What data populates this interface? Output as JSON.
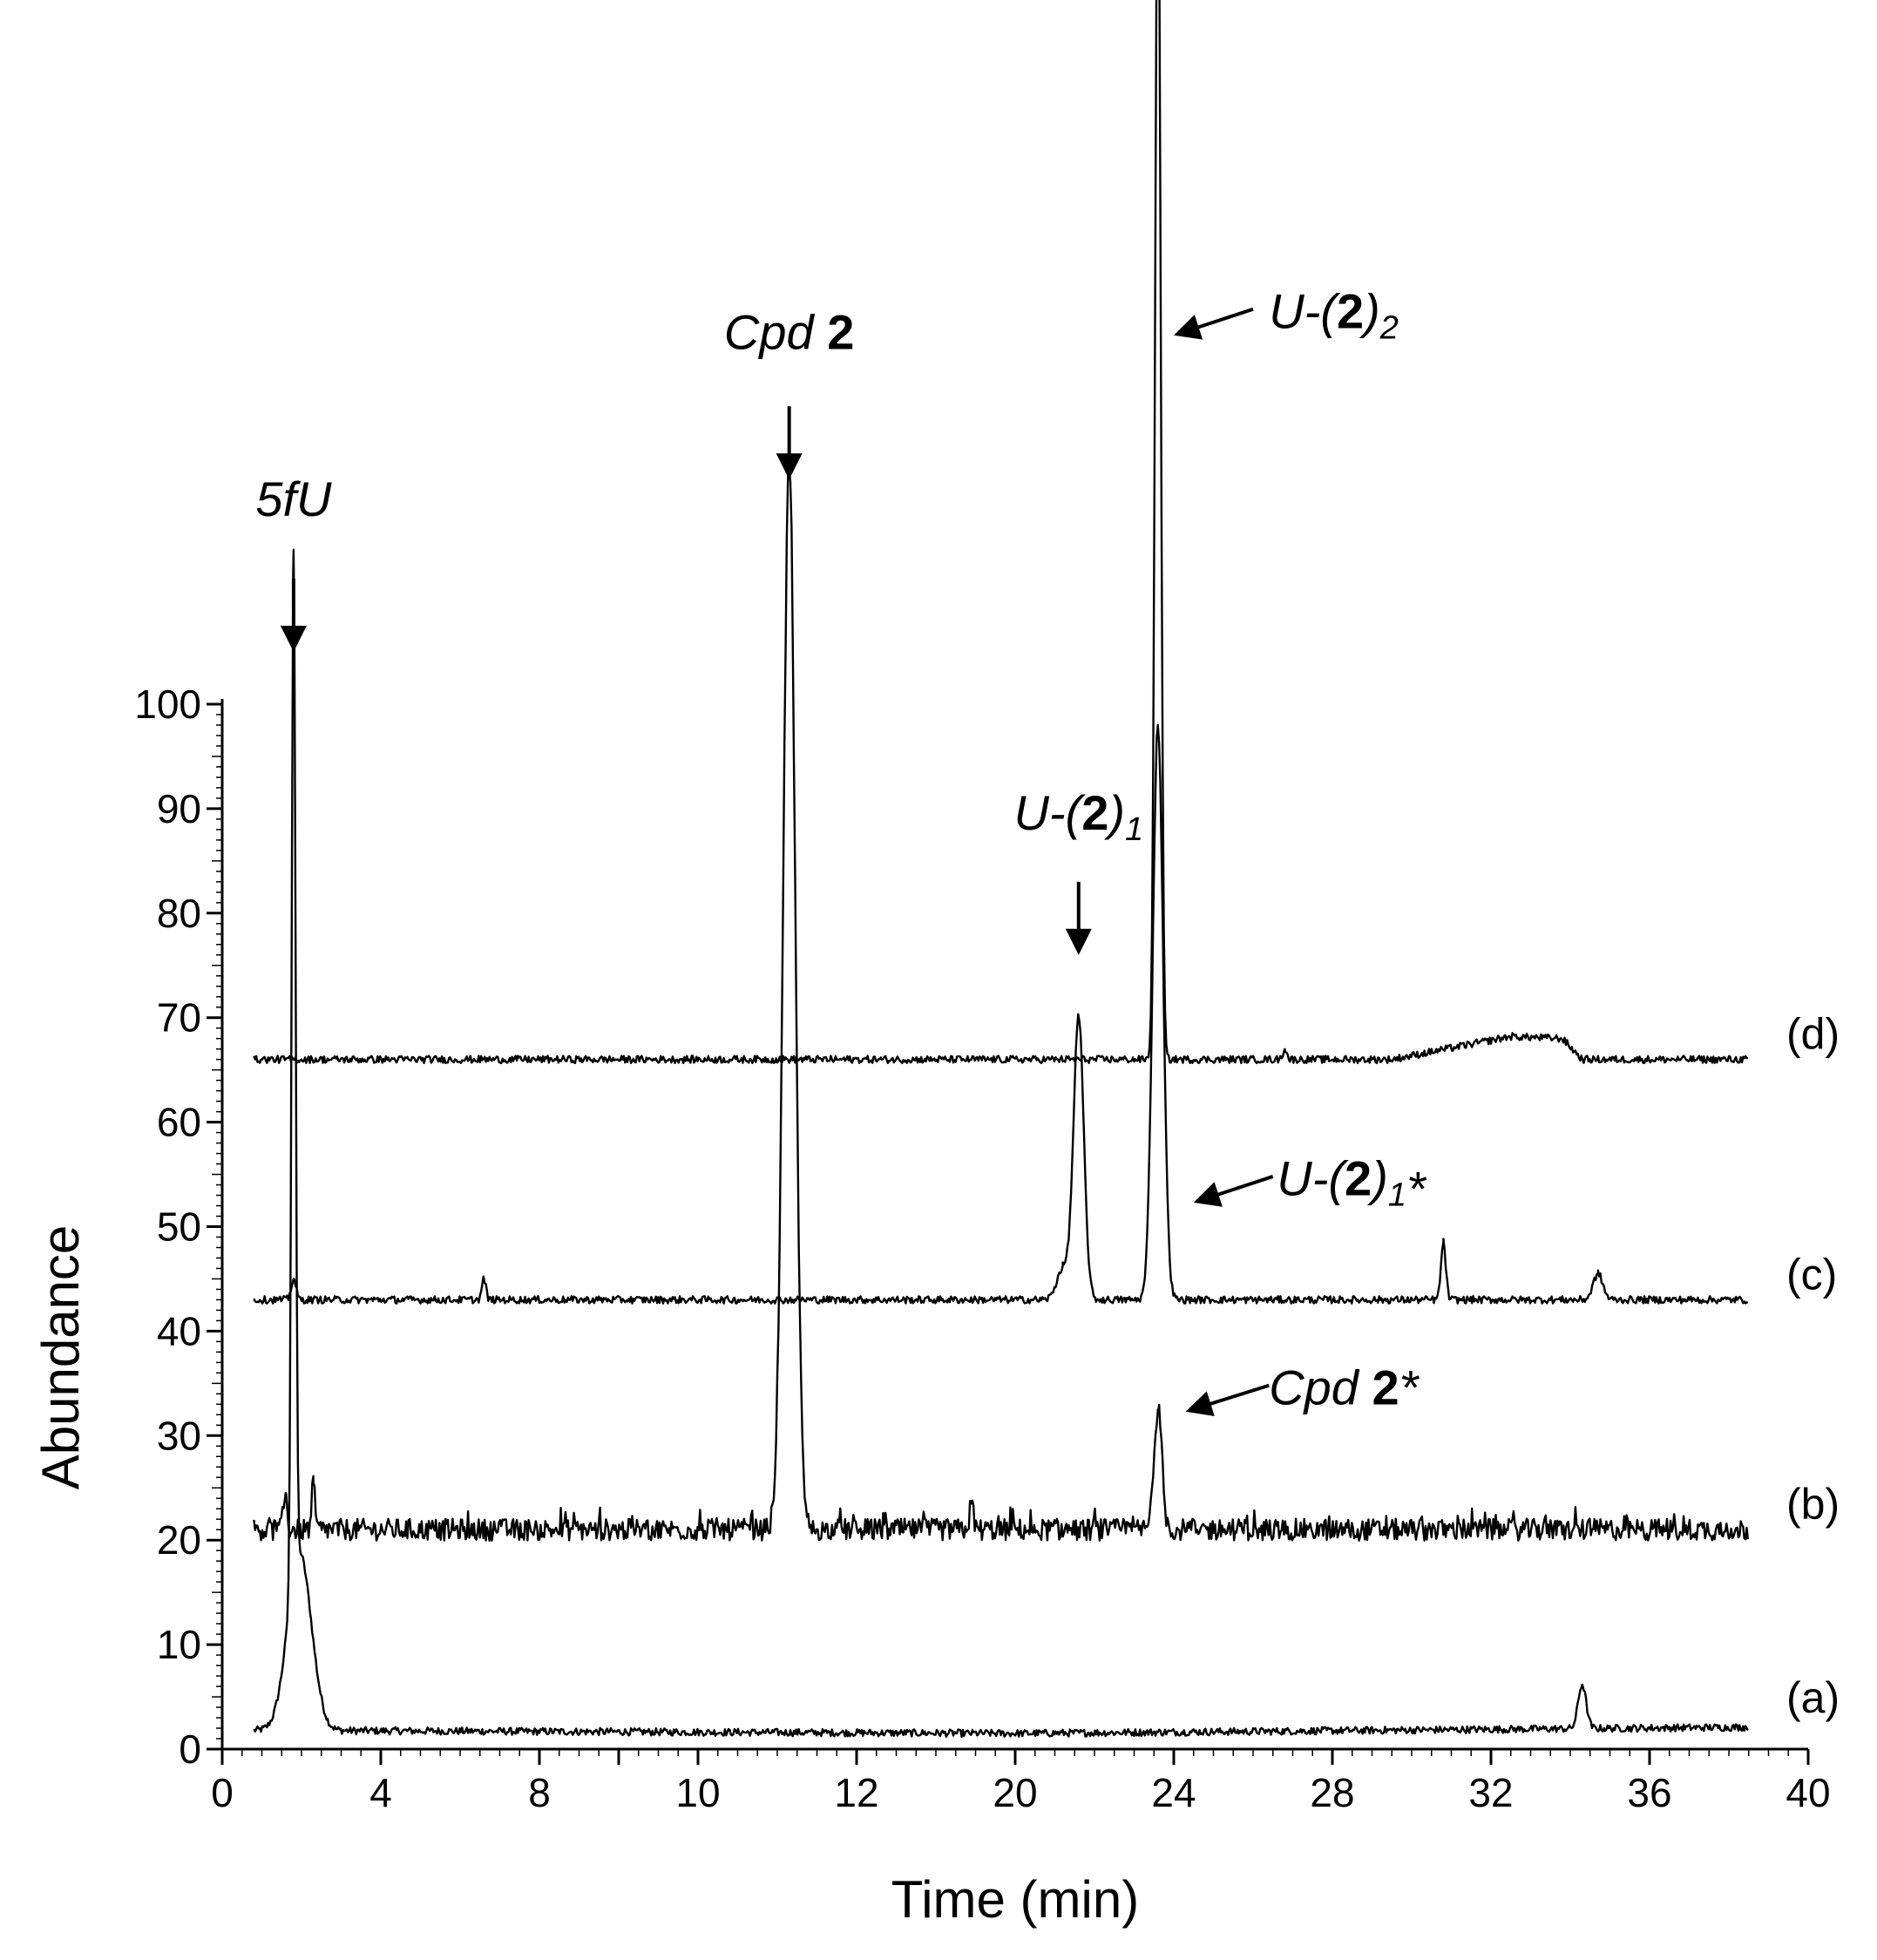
{
  "chart_data": {
    "type": "line",
    "title": "",
    "xlabel": "Time (min)",
    "ylabel": "Abundance",
    "xlim": [
      0,
      40
    ],
    "ylim": [
      0,
      100
    ],
    "x_ticks": [
      "0",
      "4",
      "8",
      "10",
      "12",
      "20",
      "24",
      "28",
      "32",
      "36",
      "40"
    ],
    "y_ticks": [
      "0",
      "10",
      "20",
      "30",
      "40",
      "50",
      "60",
      "70",
      "80",
      "90",
      "100"
    ],
    "grid": false,
    "legend": "none",
    "baseline_noise": 0.35,
    "series": [
      {
        "name": "(a)",
        "x_range": [
          0.8,
          38.5
        ],
        "baseline": [
          [
            0.8,
            1.8
          ],
          [
            20,
            1.5
          ],
          [
            38.5,
            2.1
          ]
        ],
        "peaks": [
          {
            "x": 1.8,
            "height": 98,
            "width": 0.05
          },
          {
            "x": 1.95,
            "height": 17,
            "width": 0.3
          },
          {
            "x": 34.3,
            "height": 4.2,
            "width": 0.1
          }
        ],
        "label": "(a)",
        "label_y": 5
      },
      {
        "name": "(b)",
        "x_range": [
          0.8,
          38.5
        ],
        "baseline": [
          [
            0.8,
            21
          ],
          [
            38.5,
            21
          ]
        ],
        "noise_scale": 3,
        "peaks": [
          {
            "x": 1.6,
            "height": 3.5,
            "width": 0.04
          },
          {
            "x": 2.3,
            "height": 4.5,
            "width": 0.04
          },
          {
            "x": 14.3,
            "height": 102,
            "width": 0.15
          },
          {
            "x": 18.9,
            "height": 2.5,
            "width": 0.05
          },
          {
            "x": 23.6,
            "height": 11.5,
            "width": 0.1
          }
        ],
        "label": "(b)",
        "label_y": 23.5
      },
      {
        "name": "(c)",
        "x_range": [
          0.8,
          38.5
        ],
        "baseline": [
          [
            0.8,
            43
          ],
          [
            38.5,
            43
          ]
        ],
        "peaks": [
          {
            "x": 1.8,
            "height": 2,
            "width": 0.06
          },
          {
            "x": 6.6,
            "height": 2,
            "width": 0.05
          },
          {
            "x": 21.6,
            "height": 27,
            "width": 0.13
          },
          {
            "x": 21.2,
            "height": 3,
            "width": 0.15
          },
          {
            "x": 23.6,
            "height": 55,
            "width": 0.13
          },
          {
            "x": 30.8,
            "height": 5.5,
            "width": 0.06
          },
          {
            "x": 34.7,
            "height": 2.5,
            "width": 0.12
          }
        ],
        "label": "(c)",
        "label_y": 45.5
      },
      {
        "name": "(d)",
        "x_range": [
          0.8,
          38.5
        ],
        "baseline": [
          [
            0.8,
            66
          ],
          [
            29.5,
            66
          ],
          [
            32.5,
            68.2
          ],
          [
            33.8,
            68
          ],
          [
            34.3,
            66
          ],
          [
            38.5,
            66
          ]
        ],
        "peaks": [
          {
            "x": 23.6,
            "height": 120,
            "width": 0.07
          },
          {
            "x": 26.8,
            "height": 1,
            "width": 0.05
          }
        ],
        "label": "(d)",
        "label_y": 68.5
      }
    ],
    "annotations": [
      {
        "id": "5fu",
        "parts": [
          {
            "t": "5fU"
          }
        ],
        "arrow": "down",
        "x": 1.8,
        "text_y": 118,
        "arrow_from": 112,
        "arrow_to": 105
      },
      {
        "id": "cpd2",
        "parts": [
          {
            "t": "Cpd "
          },
          {
            "t": "2",
            "b": true
          }
        ],
        "arrow": "down",
        "x": 14.3,
        "text_y": 134,
        "arrow_from": 128.5,
        "arrow_to": 121.5
      },
      {
        "id": "u21",
        "parts": [
          {
            "t": "U-("
          },
          {
            "t": "2",
            "b": true
          },
          {
            "t": ")"
          },
          {
            "t": "1",
            "sub": true
          }
        ],
        "arrow": "down",
        "x": 21.6,
        "text_y": 88,
        "arrow_from": 83,
        "arrow_to": 76
      },
      {
        "id": "u22",
        "parts": [
          {
            "t": "U-("
          },
          {
            "t": "2",
            "b": true
          },
          {
            "t": ")"
          },
          {
            "t": "2",
            "sub": true
          }
        ],
        "arrow": "left",
        "text_x": 26.4,
        "text_y": 136,
        "arrow_from_x": 26.0,
        "arrow_from_y": 137.8,
        "arrow_to_x": 24.0,
        "arrow_to_y": 135.3
      },
      {
        "id": "u21star",
        "parts": [
          {
            "t": "U-("
          },
          {
            "t": "2",
            "b": true
          },
          {
            "t": ")"
          },
          {
            "t": "1",
            "sub": true
          },
          {
            "t": "*"
          }
        ],
        "arrow": "left",
        "text_x": 26.6,
        "text_y": 53,
        "arrow_from_x": 26.5,
        "arrow_from_y": 54.8,
        "arrow_to_x": 24.5,
        "arrow_to_y": 52.3
      },
      {
        "id": "cpd2star",
        "parts": [
          {
            "t": "Cpd "
          },
          {
            "t": "2",
            "b": true
          },
          {
            "t": "*"
          }
        ],
        "arrow": "left",
        "text_x": 26.4,
        "text_y": 33,
        "arrow_from_x": 26.4,
        "arrow_from_y": 34.8,
        "arrow_to_x": 24.3,
        "arrow_to_y": 32.3
      }
    ],
    "colors": {
      "line": "#000000",
      "background": "#ffffff"
    }
  }
}
